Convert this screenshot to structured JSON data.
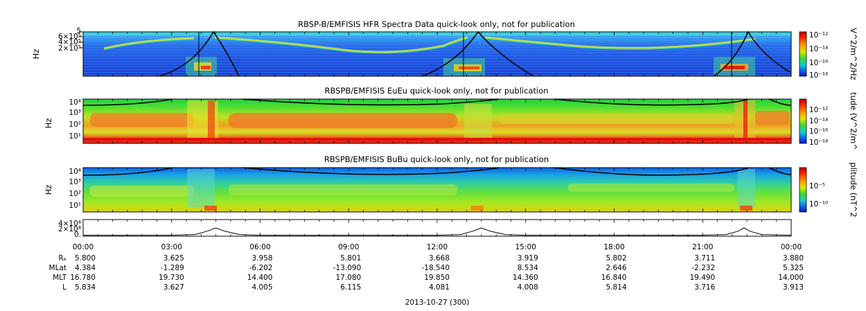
{
  "chart_data": [
    {
      "type": "heatmap",
      "title": "RBSP-B/EMFISIS  HFR Spectra Data quick-look only, not for publication",
      "ylabel": "Hz",
      "ytick_labels": [
        "5",
        "6×10⁵",
        "4×10⁵",
        "2×10⁵"
      ],
      "colorbar": {
        "label": "V^2/m^2/Hz",
        "tick_labels": [
          "10⁻¹²",
          "10⁻¹⁴",
          "10⁻¹⁶",
          "10⁻¹⁸"
        ]
      },
      "overlay_curve": "black line",
      "vertical_marks_hours": [
        4.0,
        12.9,
        21.9
      ]
    },
    {
      "type": "heatmap",
      "title": "RBSPB/EMFISIS  EuEu quick-look only, not for publication",
      "ylabel": "Hz",
      "ytick_labels": [
        "10⁴",
        "10³",
        "10²",
        "10¹"
      ],
      "colorbar": {
        "label": "tude (V^2/m^",
        "tick_labels": [
          "10⁻¹²",
          "10⁻¹⁴",
          "10⁻¹⁶",
          "10⁻¹⁸"
        ]
      },
      "overlay_curve": "black line"
    },
    {
      "type": "heatmap",
      "title": "RBSPB/EMFISIS  BuBu quick-look only, not for publication",
      "ylabel": "Hz",
      "ytick_labels": [
        "10⁴",
        "10³",
        "10²",
        "10¹"
      ],
      "colorbar": {
        "label": "plitude (nT^2",
        "tick_labels": [
          "10⁻⁵",
          "10⁻¹⁰"
        ]
      },
      "overlay_curve": "black line"
    },
    {
      "type": "line",
      "ytick_labels": [
        "4×10⁴",
        "2×10⁴",
        "0."
      ],
      "x": [
        0,
        3,
        3.8,
        4.2,
        4.5,
        4.8,
        5.3,
        6,
        12,
        12.8,
        13.2,
        13.5,
        13.8,
        14.3,
        15,
        21,
        21.8,
        22.2,
        22.4,
        22.6,
        23,
        24
      ],
      "y": [
        0.3,
        0.3,
        0.5,
        1.5,
        2.5,
        1.5,
        0.5,
        0.3,
        0.3,
        0.5,
        1.5,
        2.5,
        1.5,
        0.5,
        0.3,
        0.3,
        0.5,
        1.5,
        2.5,
        1.5,
        0.5,
        0.3
      ],
      "yunit": "×10⁴"
    }
  ],
  "x_axis": {
    "tick_labels": [
      "00:00",
      "03:00",
      "06:00",
      "09:00",
      "12:00",
      "15:00",
      "18:00",
      "21:00",
      "00:00"
    ],
    "xlabel": "2013-10-27 (300)"
  },
  "ephemeris": {
    "row_labels": [
      "Rₑ",
      "MLat",
      "MLT",
      "L"
    ],
    "rows": [
      [
        "5.800",
        "3.625",
        "3.958",
        "5.801",
        "3.668",
        "3.919",
        "5.802",
        "3.711",
        "3.880"
      ],
      [
        "4.384",
        "-1.289",
        "-6.202",
        "-13.090",
        "-18.540",
        "8.534",
        "2.646",
        "-2.232",
        "5.325"
      ],
      [
        "16.780",
        "19.730",
        "14.400",
        "17.080",
        "19.850",
        "14.360",
        "16.840",
        "19.490",
        "14.000"
      ],
      [
        "5.834",
        "3.627",
        "4.005",
        "6.115",
        "4.081",
        "4.008",
        "5.814",
        "3.716",
        "3.913"
      ]
    ]
  }
}
